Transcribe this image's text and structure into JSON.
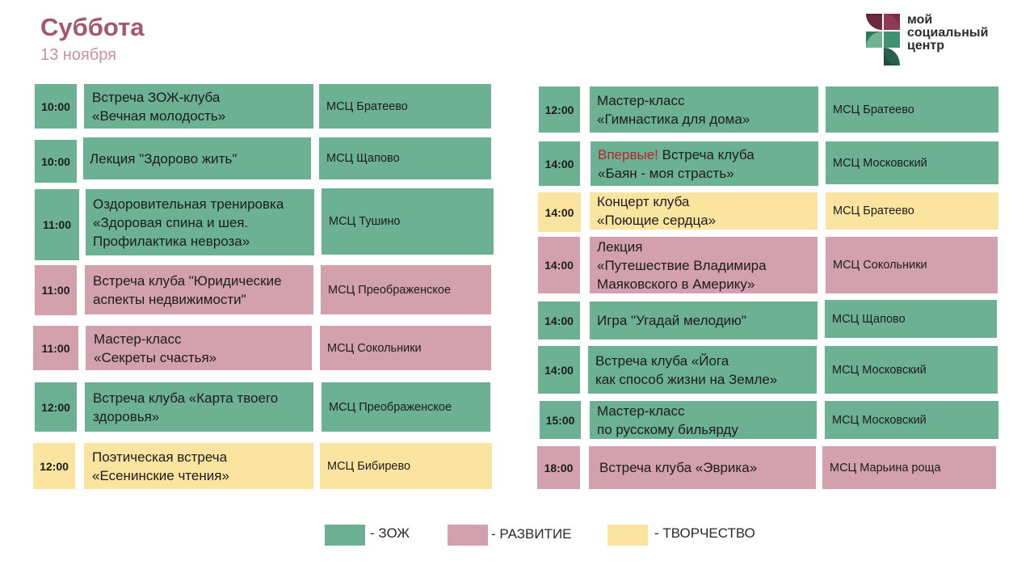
{
  "header": {
    "day": "Суббота",
    "date": "13 ноября"
  },
  "logo": {
    "lines": [
      "мой",
      "социальный",
      "центр"
    ]
  },
  "colors": {
    "zoj": "#6cb194",
    "razvitie": "#d3a1ad",
    "tvorchestvo": "#fbe4a0",
    "title": "#a3586f",
    "highlight": "#b8222b"
  },
  "left_events": [
    {
      "time": "10:00",
      "title": [
        "Встреча ЗОЖ-клуба",
        "«Вечная молодость»"
      ],
      "place": "МСЦ Братеево",
      "category": "zoj"
    },
    {
      "time": "10:00",
      "title": [
        "Лекция \"Здорово жить\""
      ],
      "place": "МСЦ Щапово",
      "category": "zoj"
    },
    {
      "time": "11:00",
      "title": [
        "Оздоровительная тренировка",
        "«Здоровая спина и шея.",
        "Профилактика невроза»"
      ],
      "place": "МСЦ Тушино",
      "category": "zoj"
    },
    {
      "time": "11:00",
      "title": [
        "Встреча клуба \"Юридические",
        "аспекты недвижимости\""
      ],
      "place": "МСЦ Преображенское",
      "category": "razvitie"
    },
    {
      "time": "11:00",
      "title": [
        "Мастер-класс",
        "«Секреты счастья»"
      ],
      "place": "МСЦ Сокольники",
      "category": "razvitie"
    },
    {
      "time": "12:00",
      "title": [
        "Встреча клуба «Карта твоего",
        "здоровья»"
      ],
      "place": "МСЦ Преображенское",
      "category": "zoj"
    },
    {
      "time": "12:00",
      "title": [
        "Поэтическая встреча",
        "«Есенинские чтения»"
      ],
      "place": "МСЦ Бибирево",
      "category": "tvorchestvo"
    }
  ],
  "right_events": [
    {
      "time": "12:00",
      "title": [
        "Мастер-класс",
        "«Гимнастика для дома»"
      ],
      "place": "МСЦ Братеево",
      "category": "zoj"
    },
    {
      "time": "14:00",
      "badge": "Впервые!",
      "title": [
        "Встреча клуба",
        "«Баян - моя страсть»"
      ],
      "place": "МСЦ Московский",
      "category": "zoj"
    },
    {
      "time": "14:00",
      "title": [
        "Концерт клуба",
        "«Поющие сердца»"
      ],
      "place": "МСЦ Братеево",
      "category": "tvorchestvo"
    },
    {
      "time": "14:00",
      "title": [
        "Лекция",
        "«Путешествие Владимира",
        "Маяковского в Америку»"
      ],
      "place": "МСЦ Сокольники",
      "category": "razvitie"
    },
    {
      "time": "14:00",
      "title": [
        "Игра \"Угадай мелодию\""
      ],
      "place": "МСЦ Щапово",
      "category": "zoj"
    },
    {
      "time": "14:00",
      "title": [
        "Встреча клуба «Йога",
        "как способ жизни на Земле»"
      ],
      "place": "МСЦ Московский",
      "category": "zoj"
    },
    {
      "time": "15:00",
      "title": [
        "Мастер-класс",
        "по русскому бильярду"
      ],
      "place": "МСЦ Московский",
      "category": "zoj"
    },
    {
      "time": "18:00",
      "title": [
        "Встреча клуба «Эврика»"
      ],
      "place": "МСЦ Марьина роща",
      "category": "razvitie"
    }
  ],
  "legend": [
    {
      "label": "- ЗОЖ",
      "category": "zoj"
    },
    {
      "label": "- РАЗВИТИЕ",
      "category": "razvitie"
    },
    {
      "label": "- ТВОРЧЕСТВО",
      "category": "tvorchestvo"
    }
  ]
}
